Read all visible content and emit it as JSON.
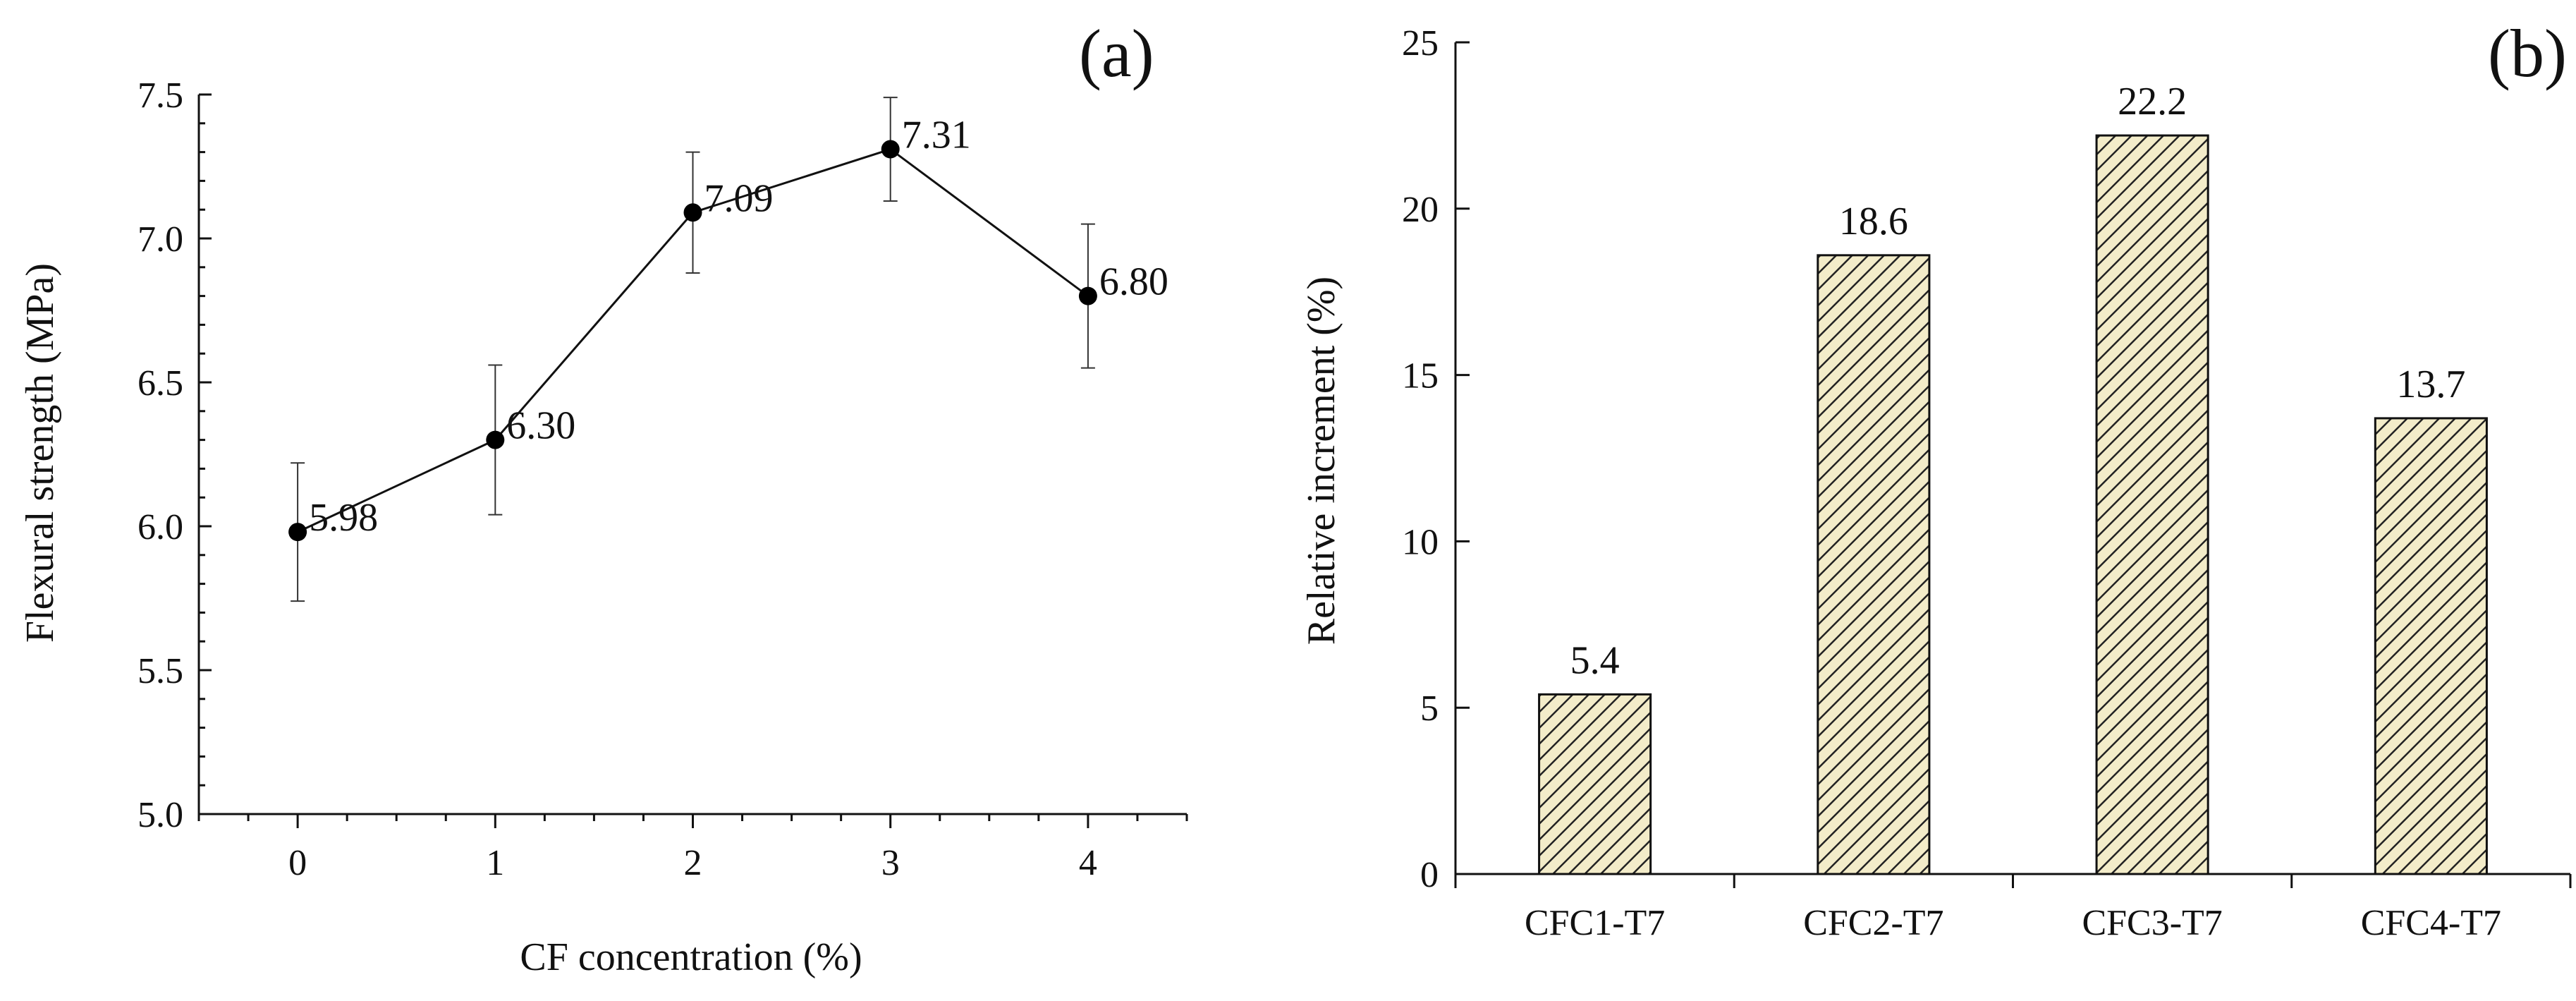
{
  "chart_data": [
    {
      "type": "line",
      "panel_label": "(a)",
      "xlabel": "CF concentration (%)",
      "ylabel": "Flexural strength (MPa)",
      "x": [
        0,
        1,
        2,
        3,
        4
      ],
      "x_tick_labels": [
        "0",
        "1",
        "2",
        "3",
        "4"
      ],
      "y_tick_labels": [
        "5.0",
        "5.5",
        "6.0",
        "6.5",
        "7.0",
        "7.5"
      ],
      "y_ticks": [
        5.0,
        5.5,
        6.0,
        6.5,
        7.0,
        7.5
      ],
      "xlim": [
        -0.5,
        4.5
      ],
      "ylim": [
        5.0,
        7.5
      ],
      "series": [
        {
          "name": "Flexural strength",
          "values": [
            5.98,
            6.3,
            7.09,
            7.31,
            6.8
          ],
          "errors": [
            0.24,
            0.26,
            0.21,
            0.18,
            0.25
          ],
          "labels": [
            "5.98",
            "6.30",
            "7.09",
            "7.31",
            "6.80"
          ]
        }
      ],
      "grid": false
    },
    {
      "type": "bar",
      "panel_label": "(b)",
      "xlabel": "",
      "ylabel": "Relative increment (%)",
      "categories": [
        "CFC1-T7",
        "CFC2-T7",
        "CFC3-T7",
        "CFC4-T7"
      ],
      "values": [
        5.4,
        18.6,
        22.2,
        13.7
      ],
      "value_labels": [
        "5.4",
        "18.6",
        "22.2",
        "13.7"
      ],
      "y_tick_labels": [
        "0",
        "5",
        "10",
        "15",
        "20",
        "25"
      ],
      "y_ticks": [
        0,
        5,
        10,
        15,
        20,
        25
      ],
      "ylim": [
        0,
        25
      ],
      "bar_fill": "#f3ecc9",
      "hatch_color": "#222222",
      "grid": false
    }
  ]
}
